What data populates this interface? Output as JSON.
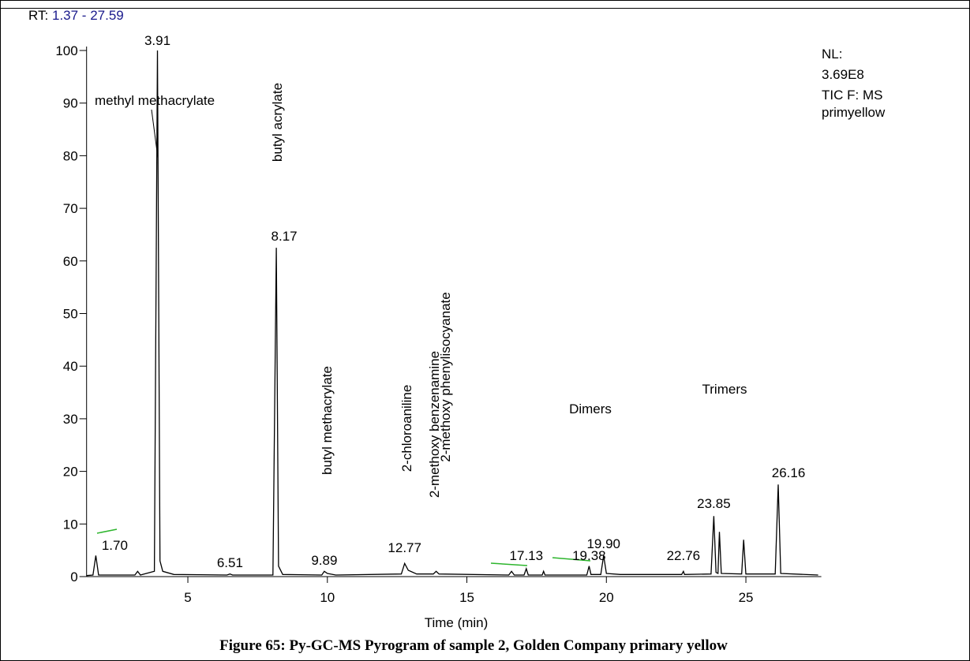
{
  "rt_label": "RT:",
  "rt_range": "1.37 - 27.59",
  "info": [
    "NL:",
    "3.69E8",
    "TIC F:  MS",
    "primyellow"
  ],
  "chart_data": {
    "type": "line",
    "x_label": "Time (min)",
    "xlim": [
      1.37,
      27.59
    ],
    "xticks": [
      5,
      10,
      15,
      20,
      25
    ],
    "ylim": [
      0,
      100
    ],
    "yticks": [
      0,
      10,
      20,
      30,
      40,
      50,
      60,
      70,
      80,
      90,
      100
    ],
    "series": [
      {
        "color": "#000000",
        "x": [
          1.37,
          1.6,
          1.7,
          1.8,
          2.5,
          3.1,
          3.2,
          3.3,
          3.8,
          3.91,
          4.0,
          4.1,
          4.5,
          6.4,
          6.51,
          6.6,
          8.05,
          8.17,
          8.25,
          8.4,
          9.8,
          9.89,
          10.0,
          10.3,
          12.65,
          12.77,
          12.9,
          13.2,
          13.8,
          13.9,
          14.0,
          16.5,
          16.6,
          16.7,
          17.05,
          17.13,
          17.2,
          17.7,
          17.75,
          17.8,
          19.3,
          19.38,
          19.45,
          19.8,
          19.9,
          20.0,
          20.5,
          22.7,
          22.76,
          22.8,
          23.75,
          23.85,
          23.93,
          24.0,
          24.05,
          24.12,
          24.85,
          24.92,
          25.0,
          26.05,
          26.16,
          26.25,
          27.59
        ],
        "values": [
          0.2,
          0.3,
          4,
          0.3,
          0.3,
          0.3,
          1,
          0.3,
          1,
          100,
          3,
          1,
          0.4,
          0.3,
          0.5,
          0.3,
          0.3,
          62.5,
          2,
          0.4,
          0.3,
          1,
          0.6,
          0.3,
          0.5,
          2.5,
          1.2,
          0.5,
          0.5,
          1,
          0.5,
          0.3,
          1,
          0.3,
          0.3,
          1.5,
          0.3,
          0.3,
          1,
          0.3,
          0.3,
          2,
          0.4,
          0.4,
          4,
          0.6,
          0.4,
          0.4,
          1,
          0.4,
          0.5,
          11.5,
          0.8,
          0.6,
          8.5,
          0.6,
          0.5,
          7,
          0.5,
          0.5,
          17.5,
          0.6,
          0.3
        ]
      }
    ],
    "peak_labels": [
      {
        "value": 1.7,
        "label": "1.70"
      },
      {
        "value": 3.91,
        "label": "3.91"
      },
      {
        "value": 6.51,
        "label": "6.51"
      },
      {
        "value": 8.17,
        "label": "8.17"
      },
      {
        "value": 9.89,
        "label": "9.89"
      },
      {
        "value": 12.77,
        "label": "12.77"
      },
      {
        "value": 17.13,
        "label": "17.13"
      },
      {
        "value": 19.38,
        "label": "19.38"
      },
      {
        "value": 19.9,
        "label": "19.90"
      },
      {
        "value": 22.76,
        "label": "22.76"
      },
      {
        "value": 23.85,
        "label": "23.85"
      },
      {
        "value": 26.16,
        "label": "26.16"
      }
    ],
    "annotations": [
      "methyl methacrylate",
      "butyl acrylate",
      "butyl methacrylate",
      "2-chloroaniline",
      "2-methoxy benzenamine",
      "2-methoxy phenylisocyanate",
      "Dimers",
      "Trimers"
    ]
  },
  "caption": "Figure 65: Py-GC-MS Pyrogram of sample 2, Golden Company primary yellow"
}
